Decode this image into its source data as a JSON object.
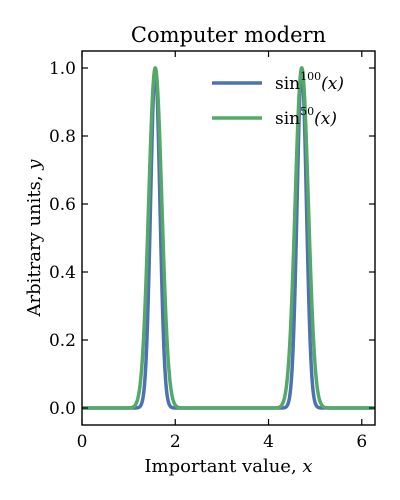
{
  "chart_data": {
    "type": "line",
    "title": "Computer modern",
    "xlabel": "Important value, ",
    "xlabel_var": "x",
    "ylabel": "Arbitrary units, ",
    "ylabel_var": "y",
    "xlim": [
      0,
      6.2832
    ],
    "ylim": [
      -0.05,
      1.05
    ],
    "xticks": [
      0,
      2,
      4,
      6
    ],
    "xtick_labels": [
      "0",
      "2",
      "4",
      "6"
    ],
    "yticks": [
      0.0,
      0.2,
      0.4,
      0.6,
      0.8,
      1.0
    ],
    "ytick_labels": [
      "0.0",
      "0.2",
      "0.4",
      "0.6",
      "0.8",
      "1.0"
    ],
    "grid": false,
    "legend_position": "top-right",
    "series": [
      {
        "name": "sin100(x)",
        "legend_base": "sin",
        "legend_exponent": "100",
        "legend_arg": "(x)",
        "function": "sin^100(x)",
        "exponent": 100,
        "color": "#4c72b0"
      },
      {
        "name": "sin50(x)",
        "legend_base": "sin",
        "legend_exponent": "50",
        "legend_arg": "(x)",
        "function": "sin^50(x)",
        "exponent": 50,
        "color": "#55a868"
      }
    ]
  }
}
